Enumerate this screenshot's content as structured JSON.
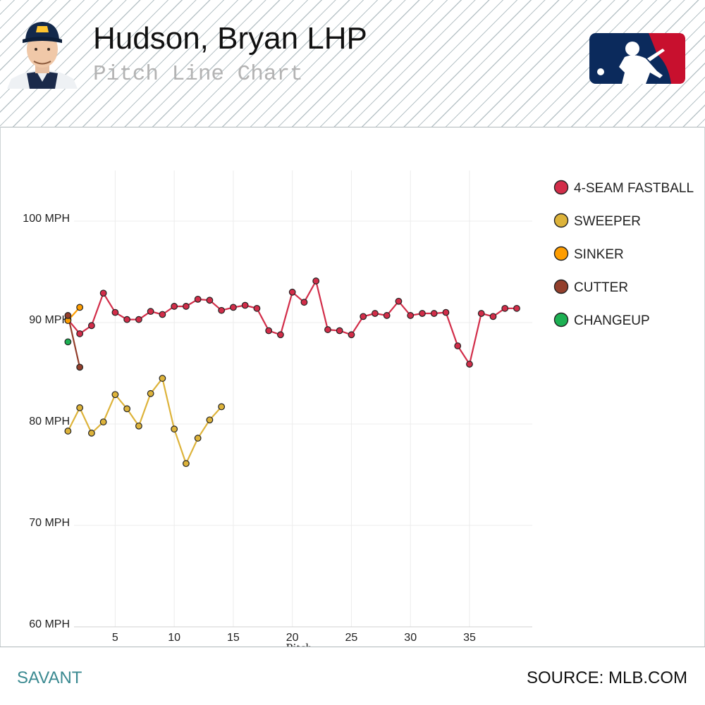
{
  "header": {
    "player_name": "Hudson, Bryan LHP",
    "subtitle": "Pitch Line Chart",
    "brand_colors": {
      "navy": "#0b2a5c",
      "red": "#c8102e"
    }
  },
  "footer": {
    "left_label": "SAVANT",
    "right_label": "SOURCE: MLB.COM"
  },
  "chart_data": {
    "type": "line",
    "title": "Pitch Line Chart",
    "xlabel": "Pitch",
    "ylabel": "",
    "xlim": [
      0.5,
      39.3
    ],
    "ylim": [
      60,
      105
    ],
    "x_ticks": [
      5,
      10,
      15,
      20,
      25,
      30,
      35
    ],
    "y_ticks": [
      {
        "value": 60,
        "label": "60 MPH"
      },
      {
        "value": 70,
        "label": "70 MPH"
      },
      {
        "value": 80,
        "label": "80 MPH"
      },
      {
        "value": 90,
        "label": "90 MPH"
      },
      {
        "value": 100,
        "label": "100 MPH"
      }
    ],
    "grid": true,
    "legend_position": "right",
    "series": [
      {
        "name": "4-SEAM FASTBALL",
        "color": "#d22d49",
        "x": [
          1,
          2,
          3,
          4,
          5,
          6,
          7,
          8,
          9,
          10,
          11,
          12,
          13,
          14,
          15,
          16,
          17,
          18,
          19,
          20,
          21,
          22,
          23,
          24,
          25,
          26,
          27,
          28,
          29,
          30,
          31,
          32,
          33,
          34,
          35,
          36,
          37,
          38,
          39
        ],
        "y": [
          90.3,
          88.9,
          89.7,
          92.9,
          91.0,
          90.3,
          90.3,
          91.1,
          90.8,
          91.6,
          91.6,
          92.3,
          92.2,
          91.2,
          91.5,
          91.7,
          91.4,
          89.2,
          88.8,
          93.0,
          92.0,
          94.1,
          89.3,
          89.2,
          88.8,
          90.6,
          90.9,
          90.7,
          92.1,
          90.7,
          90.9,
          90.9,
          91.0,
          87.7,
          85.9,
          90.9,
          90.6,
          91.4,
          91.4
        ]
      },
      {
        "name": "SWEEPER",
        "color": "#ddb33a",
        "x": [
          1,
          2,
          3,
          4,
          5,
          6,
          7,
          8,
          9,
          10,
          11,
          12,
          13,
          14
        ],
        "y": [
          79.3,
          81.6,
          79.1,
          80.2,
          82.9,
          81.5,
          79.8,
          83.0,
          84.5,
          79.5,
          76.1,
          78.6,
          80.4,
          81.7
        ]
      },
      {
        "name": "SINKER",
        "color": "#fe9d00",
        "x": [
          1,
          2
        ],
        "y": [
          90.2,
          91.5
        ]
      },
      {
        "name": "CUTTER",
        "color": "#933f2c",
        "x": [
          1,
          2
        ],
        "y": [
          90.7,
          85.6
        ]
      },
      {
        "name": "CHANGEUP",
        "color": "#1db053",
        "x": [
          1
        ],
        "y": [
          88.1
        ]
      }
    ]
  }
}
